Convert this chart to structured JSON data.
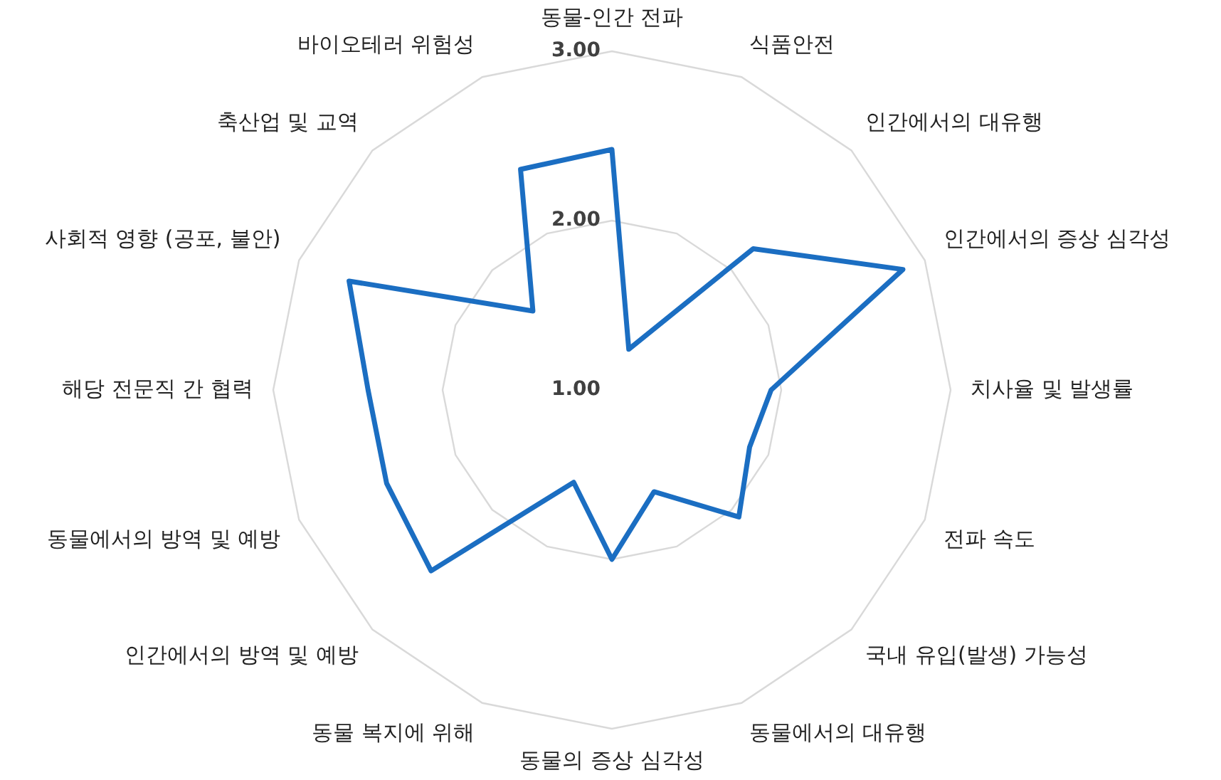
{
  "chart_data": {
    "type": "radar",
    "categories": [
      "동물-인간 전파",
      "식품안전",
      "인간에서의 대유행",
      "인간에서의 증상 심각성",
      "치사율 및 발생률",
      "전파 속도",
      "국내 유입(발생) 가능성",
      "동물에서의 대유행",
      "동물의 증상 심각성",
      "동물 복지에 위해",
      "인간에서의 방역 및 예방",
      "동물에서의 방역 및 예방",
      "해당 전문직 간 협력",
      "사회적 영향 (공포, 불안)",
      "축산업 및 교역",
      "바이오테러 위험성"
    ],
    "series": [
      {
        "color": "#1b6ec2",
        "values": [
          2.42,
          1.26,
          2.18,
          2.86,
          1.94,
          1.88,
          2.06,
          1.65,
          2.0,
          1.59,
          2.51,
          2.44,
          2.44,
          2.68,
          1.66,
          2.41
        ]
      }
    ],
    "ylim": [
      1,
      3
    ],
    "yticks": [
      {
        "value": 1,
        "label": "1.00"
      },
      {
        "value": 2,
        "label": "2.00"
      },
      {
        "value": 3,
        "label": "3.00"
      }
    ],
    "grid": true,
    "legend": false,
    "marker": "none",
    "line_style": "solid"
  }
}
